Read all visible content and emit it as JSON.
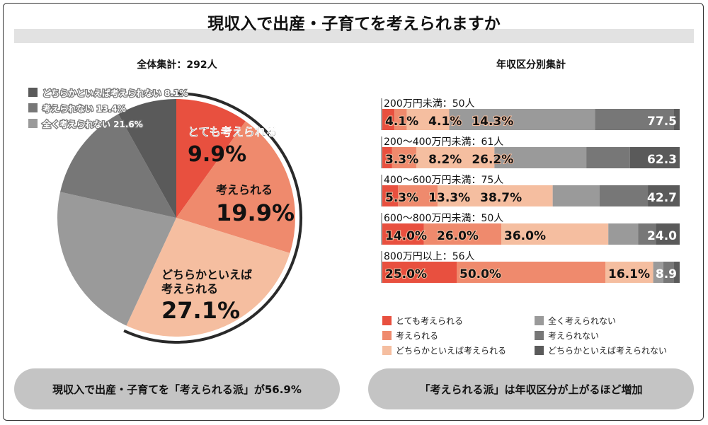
{
  "title": "現収入で出産・子育てを考えられますか",
  "chart_data": [
    {
      "type": "pie",
      "title": "全体集計：292人",
      "slices": [
        {
          "label": "とても考えられる",
          "value": 9.9,
          "color": "#e8503f",
          "display": "9.9%"
        },
        {
          "label": "考えられる",
          "value": 19.9,
          "color": "#ef8a6d",
          "display": "19.9%"
        },
        {
          "label": "どちらかといえば考えられる",
          "label_lines": [
            "どちらかといえば",
            "考えられる"
          ],
          "value": 27.1,
          "color": "#f5bea0",
          "display": "27.1%"
        },
        {
          "label": "全く考えられない",
          "value": 21.6,
          "color": "#9a9a9a",
          "display": "21.6%"
        },
        {
          "label": "考えられない",
          "value": 13.4,
          "color": "#777777",
          "display": "13.4%"
        },
        {
          "label": "どちらかといえば考えられない",
          "value": 8.1,
          "color": "#5a5a5a",
          "display": "8.1%"
        }
      ],
      "legend": [
        {
          "label": "どちらかといえば考えられない",
          "value": "8.1%",
          "color": "#5a5a5a"
        },
        {
          "label": "考えられない",
          "value": "13.4%",
          "color": "#777777"
        },
        {
          "label": "全く考えられない",
          "value": "21.6%",
          "color": "#9a9a9a"
        }
      ],
      "legend_placement": "top-left",
      "highlight_arc_total": 56.9
    },
    {
      "type": "bar",
      "orientation": "horizontal-stacked-100",
      "title": "年収区分別集計",
      "categories": [
        "200万円未満：50人",
        "200〜400万円未満：61人",
        "400〜600万円未満：75人",
        "600〜800万円未満：50人",
        "800万円以上：56人"
      ],
      "series": [
        {
          "name": "とても考えられる",
          "color": "#e8503f",
          "values": [
            4.1,
            3.3,
            5.3,
            14.0,
            25.0
          ]
        },
        {
          "name": "考えられる",
          "color": "#ef8a6d",
          "values": [
            4.1,
            8.2,
            13.3,
            26.0,
            50.0
          ]
        },
        {
          "name": "どちらかといえば考えられる",
          "color": "#f5bea0",
          "values": [
            14.3,
            26.2,
            38.7,
            36.0,
            16.1
          ]
        },
        {
          "name": "全く考えられない",
          "color": "#9a9a9a",
          "values": [
            49.0,
            30.9,
            15.8,
            10.0,
            3.4
          ]
        },
        {
          "name": "考えられない",
          "color": "#777777",
          "values": [
            26.5,
            14.7,
            16.2,
            6.0,
            3.6
          ]
        },
        {
          "name": "どちらかといえば考えられない",
          "color": "#5a5a5a",
          "values": [
            2.0,
            16.7,
            10.7,
            8.0,
            1.9
          ]
        }
      ],
      "data_labels": [
        [
          "4.1%",
          "4.1%",
          "14.3%",
          "77.5"
        ],
        [
          "3.3%",
          "8.2%",
          "26.2%",
          "62.3"
        ],
        [
          "5.3%",
          "13.3%",
          "38.7%",
          "42.7"
        ],
        [
          "14.0%",
          "26.0%",
          "36.0%",
          "24.0"
        ],
        [
          "25.0%",
          "50.0%",
          "16.1%",
          "8.9"
        ]
      ],
      "xlim": [
        0,
        100
      ],
      "legend_placement": "bottom"
    }
  ],
  "conclusions": {
    "left": "現収入で出産・子育てを「考えられる派」が56.9%",
    "right": "「考えられる派」は年収区分が上がるほど増加"
  }
}
